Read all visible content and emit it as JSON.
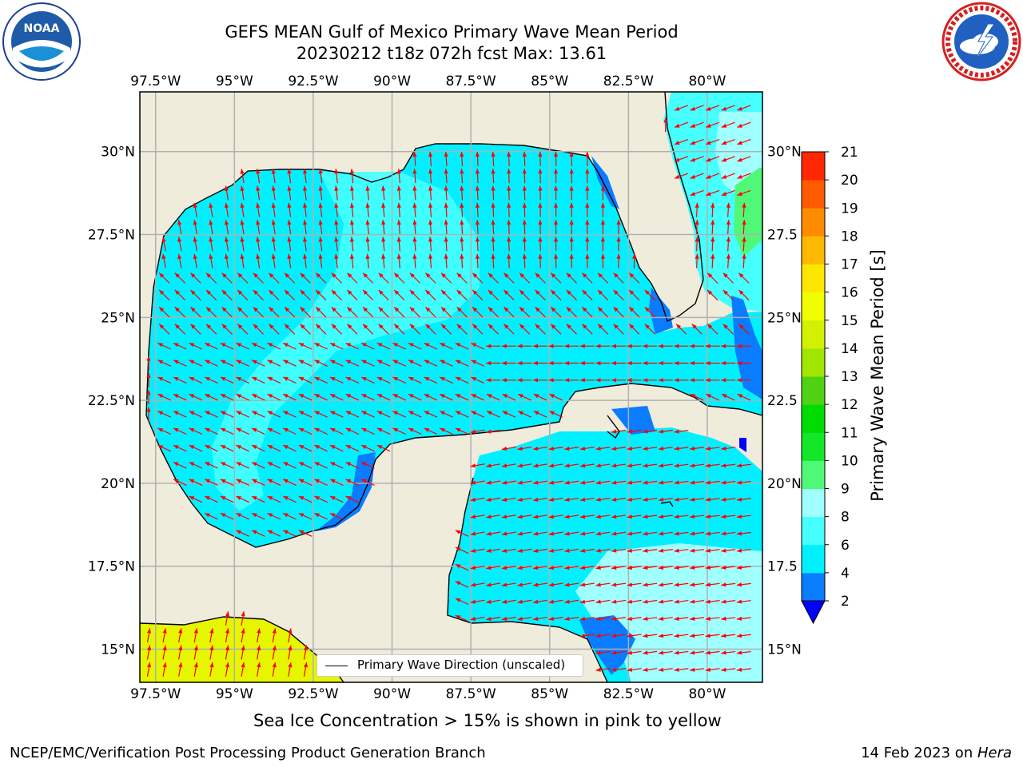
{
  "title": {
    "line1": "GEFS MEAN Gulf of Mexico Primary Wave Mean Period",
    "line2": "20230212 t18z 072h fcst   Max: 13.61"
  },
  "logos": {
    "left": "noaa-logo",
    "left_text": "NOAA",
    "right": "national-weather-service-logo"
  },
  "map": {
    "lon_labels": [
      "97.5°W",
      "95°W",
      "92.5°W",
      "90°W",
      "87.5°W",
      "85°W",
      "82.5°W",
      "80°W"
    ],
    "lat_labels_left": [
      "30°N",
      "27.5°N",
      "25°N",
      "22.5°N",
      "20°N",
      "17.5°N",
      "15°N"
    ],
    "lat_labels_right": [
      "30°N",
      "27.5",
      "25°N",
      "22.5",
      "20°N",
      "17.5",
      "15°N"
    ],
    "lon_values": [
      -97.5,
      -95,
      -92.5,
      -90,
      -87.5,
      -85,
      -82.5,
      -80
    ],
    "lat_values": [
      30,
      27.5,
      25,
      22.5,
      20,
      17.5,
      15
    ],
    "land_color": "#efecdc",
    "grid_color": "#b0b0b0",
    "arrow_color": "#ff0000",
    "legend_label": "Primary Wave Direction (unscaled)"
  },
  "colorbar": {
    "title": "Primary Wave Mean Period [s]",
    "levels": [
      "2",
      "4",
      "6",
      "8",
      "9",
      "10",
      "11",
      "12",
      "13",
      "14",
      "15",
      "16",
      "17",
      "18",
      "19",
      "20",
      "21"
    ],
    "colors": [
      "#0a7cff",
      "#00f0ff",
      "#46ffff",
      "#a0ffff",
      "#50f878",
      "#14e628",
      "#00dc00",
      "#50d214",
      "#a0e600",
      "#d2f000",
      "#f0ff00",
      "#ffe600",
      "#ffb900",
      "#ff8c00",
      "#ff5a00",
      "#ff2800"
    ],
    "under_color": "#0000ff"
  },
  "notes": {
    "sea_ice": "Sea Ice Concentration > 15% is shown in pink to yellow"
  },
  "footer": {
    "left": "NCEP/EMC/Verification Post Processing Product Generation Branch",
    "right_date": "14 Feb 2023 on ",
    "right_host": "Hera"
  }
}
